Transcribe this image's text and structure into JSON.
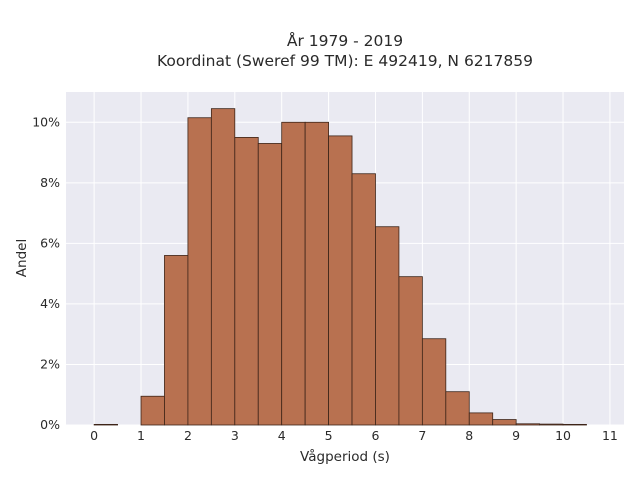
{
  "chart_data": {
    "type": "bar",
    "title_line1": "År 1979 - 2019",
    "title_line2": "Koordinat (Sweref 99 TM): E 492419, N 6217859",
    "xlabel": "Vågperiod (s)",
    "ylabel": "Andel",
    "bin_width": 0.5,
    "bin_starts": [
      0,
      0.5,
      1,
      1.5,
      2,
      2.5,
      3,
      3.5,
      4,
      4.5,
      5,
      5.5,
      6,
      6.5,
      7,
      7.5,
      8,
      8.5,
      9,
      9.5,
      10,
      10.5
    ],
    "values": [
      0.02,
      0,
      0.95,
      5.6,
      10.15,
      10.45,
      9.5,
      9.3,
      10.0,
      10.0,
      9.55,
      8.3,
      6.55,
      4.9,
      2.85,
      1.1,
      0.4,
      0.18,
      0.04,
      0.03,
      0.02,
      0
    ],
    "xlim": [
      -0.6,
      11.3
    ],
    "ylim": [
      0,
      11
    ],
    "x_ticks": [
      0,
      1,
      2,
      3,
      4,
      5,
      6,
      7,
      8,
      9,
      10,
      11
    ],
    "x_tick_labels": [
      "0",
      "1",
      "2",
      "3",
      "4",
      "5",
      "6",
      "7",
      "8",
      "9",
      "10",
      "11"
    ],
    "y_ticks": [
      0,
      2,
      4,
      6,
      8,
      10
    ],
    "y_tick_labels": [
      "0%",
      "2%",
      "4%",
      "6%",
      "8%",
      "10%"
    ],
    "grid": true,
    "colors": {
      "bar_fill": "#b87150",
      "bar_edge": "#3d2418",
      "plot_bg": "#eaeaf2"
    }
  }
}
